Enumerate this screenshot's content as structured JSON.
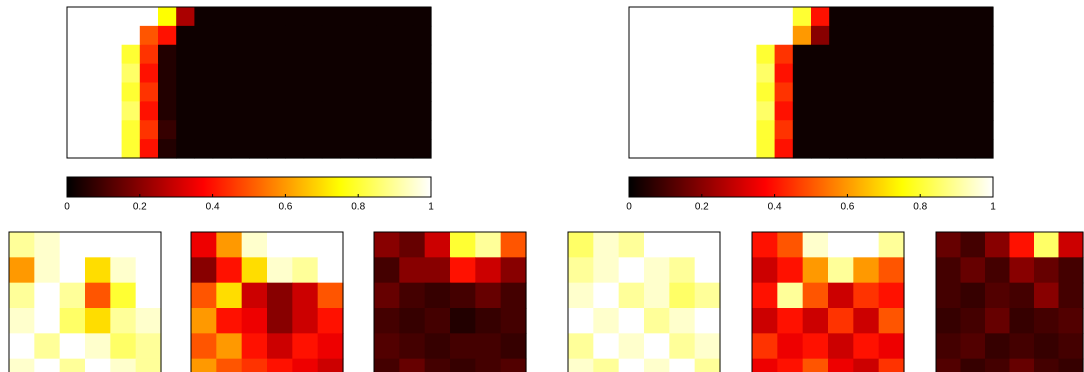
{
  "chart_data": [
    {
      "type": "heatmap",
      "colormap": "hot",
      "clim": [
        0,
        1
      ],
      "cticks": [
        0,
        0.2,
        0.4,
        0.6,
        0.8,
        1
      ],
      "values": [
        [
          1,
          1,
          1,
          1,
          1,
          0.75,
          0.25,
          0.02,
          0.02,
          0.02,
          0.02,
          0.02,
          0.02,
          0.02,
          0.02,
          0.02,
          0.02,
          0.02,
          0.02,
          0.02
        ],
        [
          1,
          1,
          1,
          1,
          0.5,
          0.4,
          0.02,
          0.02,
          0.02,
          0.02,
          0.02,
          0.02,
          0.02,
          0.02,
          0.02,
          0.02,
          0.02,
          0.02,
          0.02,
          0.02
        ],
        [
          1,
          1,
          1,
          0.8,
          0.45,
          0.05,
          0.02,
          0.02,
          0.02,
          0.02,
          0.02,
          0.02,
          0.02,
          0.02,
          0.02,
          0.02,
          0.02,
          0.02,
          0.02,
          0.02
        ],
        [
          1,
          1,
          1,
          0.85,
          0.4,
          0.05,
          0.02,
          0.02,
          0.02,
          0.02,
          0.02,
          0.02,
          0.02,
          0.02,
          0.02,
          0.02,
          0.02,
          0.02,
          0.02,
          0.02
        ],
        [
          1,
          1,
          1,
          0.8,
          0.45,
          0.05,
          0.02,
          0.02,
          0.02,
          0.02,
          0.02,
          0.02,
          0.02,
          0.02,
          0.02,
          0.02,
          0.02,
          0.02,
          0.02,
          0.02
        ],
        [
          1,
          1,
          1,
          0.85,
          0.4,
          0.05,
          0.02,
          0.02,
          0.02,
          0.02,
          0.02,
          0.02,
          0.02,
          0.02,
          0.02,
          0.02,
          0.02,
          0.02,
          0.02,
          0.02
        ],
        [
          1,
          1,
          1,
          0.8,
          0.45,
          0.08,
          0.02,
          0.02,
          0.02,
          0.02,
          0.02,
          0.02,
          0.02,
          0.02,
          0.02,
          0.02,
          0.02,
          0.02,
          0.02,
          0.02
        ],
        [
          1,
          1,
          1,
          0.8,
          0.4,
          0.05,
          0.02,
          0.02,
          0.02,
          0.02,
          0.02,
          0.02,
          0.02,
          0.02,
          0.02,
          0.02,
          0.02,
          0.02,
          0.02,
          0.02
        ]
      ]
    },
    {
      "type": "heatmap",
      "colormap": "hot",
      "clim": [
        0,
        1
      ],
      "cticks": [
        0,
        0.2,
        0.4,
        0.6,
        0.8,
        1
      ],
      "values": [
        [
          1,
          1,
          1,
          1,
          1,
          1,
          1,
          1,
          1,
          0.8,
          0.4,
          0.02,
          0.02,
          0.02,
          0.02,
          0.02,
          0.02,
          0.02,
          0.02,
          0.02
        ],
        [
          1,
          1,
          1,
          1,
          1,
          1,
          1,
          1,
          1,
          0.6,
          0.2,
          0.02,
          0.02,
          0.02,
          0.02,
          0.02,
          0.02,
          0.02,
          0.02,
          0.02
        ],
        [
          1,
          1,
          1,
          1,
          1,
          1,
          1,
          0.8,
          0.45,
          0.02,
          0.02,
          0.02,
          0.02,
          0.02,
          0.02,
          0.02,
          0.02,
          0.02,
          0.02,
          0.02
        ],
        [
          1,
          1,
          1,
          1,
          1,
          1,
          1,
          0.85,
          0.4,
          0.02,
          0.02,
          0.02,
          0.02,
          0.02,
          0.02,
          0.02,
          0.02,
          0.02,
          0.02,
          0.02
        ],
        [
          1,
          1,
          1,
          1,
          1,
          1,
          1,
          0.8,
          0.45,
          0.02,
          0.02,
          0.02,
          0.02,
          0.02,
          0.02,
          0.02,
          0.02,
          0.02,
          0.02,
          0.02
        ],
        [
          1,
          1,
          1,
          1,
          1,
          1,
          1,
          0.85,
          0.4,
          0.02,
          0.02,
          0.02,
          0.02,
          0.02,
          0.02,
          0.02,
          0.02,
          0.02,
          0.02,
          0.02
        ],
        [
          1,
          1,
          1,
          1,
          1,
          1,
          1,
          0.8,
          0.45,
          0.02,
          0.02,
          0.02,
          0.02,
          0.02,
          0.02,
          0.02,
          0.02,
          0.02,
          0.02,
          0.02
        ],
        [
          1,
          1,
          1,
          1,
          1,
          1,
          1,
          0.8,
          0.4,
          0.02,
          0.02,
          0.02,
          0.02,
          0.02,
          0.02,
          0.02,
          0.02,
          0.02,
          0.02,
          0.02
        ]
      ]
    },
    {
      "type": "image",
      "colormap": "hot",
      "values": [
        [
          0.9,
          0.95,
          1,
          1,
          1,
          1
        ],
        [
          0.6,
          0.95,
          1,
          0.7,
          0.95,
          1
        ],
        [
          0.9,
          1,
          0.9,
          0.5,
          0.8,
          1
        ],
        [
          0.95,
          1,
          0.85,
          0.7,
          0.9,
          0.95
        ],
        [
          1,
          0.9,
          1,
          0.95,
          0.85,
          0.9
        ],
        [
          0.95,
          1,
          0.9,
          1,
          0.95,
          0.9
        ]
      ]
    },
    {
      "type": "image",
      "colormap": "hot",
      "values": [
        [
          0.35,
          0.6,
          0.95,
          1,
          1,
          1
        ],
        [
          0.2,
          0.4,
          0.7,
          0.95,
          0.9,
          1
        ],
        [
          0.5,
          0.7,
          0.3,
          0.2,
          0.3,
          0.5
        ],
        [
          0.6,
          0.4,
          0.35,
          0.2,
          0.3,
          0.4
        ],
        [
          0.5,
          0.6,
          0.4,
          0.3,
          0.4,
          0.35
        ],
        [
          0.6,
          0.5,
          0.45,
          0.4,
          0.35,
          0.3
        ]
      ]
    },
    {
      "type": "image",
      "colormap": "hot",
      "values": [
        [
          0.2,
          0.15,
          0.3,
          0.8,
          0.9,
          0.5
        ],
        [
          0.1,
          0.2,
          0.2,
          0.4,
          0.3,
          0.2
        ],
        [
          0.15,
          0.1,
          0.08,
          0.1,
          0.15,
          0.1
        ],
        [
          0.1,
          0.08,
          0.1,
          0.05,
          0.08,
          0.1
        ],
        [
          0.12,
          0.1,
          0.08,
          0.1,
          0.1,
          0.08
        ],
        [
          0.1,
          0.15,
          0.1,
          0.08,
          0.1,
          0.12
        ]
      ]
    },
    {
      "type": "image",
      "colormap": "hot",
      "values": [
        [
          0.85,
          0.95,
          0.9,
          1,
          1,
          1
        ],
        [
          0.9,
          0.95,
          1,
          0.95,
          0.9,
          1
        ],
        [
          0.95,
          1,
          0.9,
          0.95,
          0.85,
          0.9
        ],
        [
          1,
          0.95,
          1,
          0.9,
          0.95,
          1
        ],
        [
          0.9,
          1,
          0.95,
          1,
          0.9,
          0.95
        ],
        [
          0.95,
          0.9,
          1,
          0.95,
          1,
          0.9
        ]
      ]
    },
    {
      "type": "image",
      "colormap": "hot",
      "values": [
        [
          0.4,
          0.5,
          0.95,
          1,
          1,
          0.9
        ],
        [
          0.3,
          0.4,
          0.6,
          0.9,
          0.6,
          0.5
        ],
        [
          0.4,
          0.9,
          0.5,
          0.3,
          0.45,
          0.4
        ],
        [
          0.3,
          0.4,
          0.3,
          0.45,
          0.3,
          0.5
        ],
        [
          0.45,
          0.35,
          0.4,
          0.3,
          0.4,
          0.35
        ],
        [
          0.35,
          0.4,
          0.5,
          0.35,
          0.3,
          0.45
        ]
      ]
    },
    {
      "type": "image",
      "colormap": "hot",
      "values": [
        [
          0.15,
          0.1,
          0.2,
          0.4,
          0.85,
          0.3
        ],
        [
          0.1,
          0.15,
          0.1,
          0.2,
          0.15,
          0.1
        ],
        [
          0.1,
          0.08,
          0.12,
          0.1,
          0.2,
          0.1
        ],
        [
          0.08,
          0.1,
          0.15,
          0.08,
          0.1,
          0.12
        ],
        [
          0.1,
          0.12,
          0.08,
          0.1,
          0.08,
          0.1
        ],
        [
          0.12,
          0.08,
          0.1,
          0.15,
          0.1,
          0.08
        ]
      ]
    }
  ]
}
